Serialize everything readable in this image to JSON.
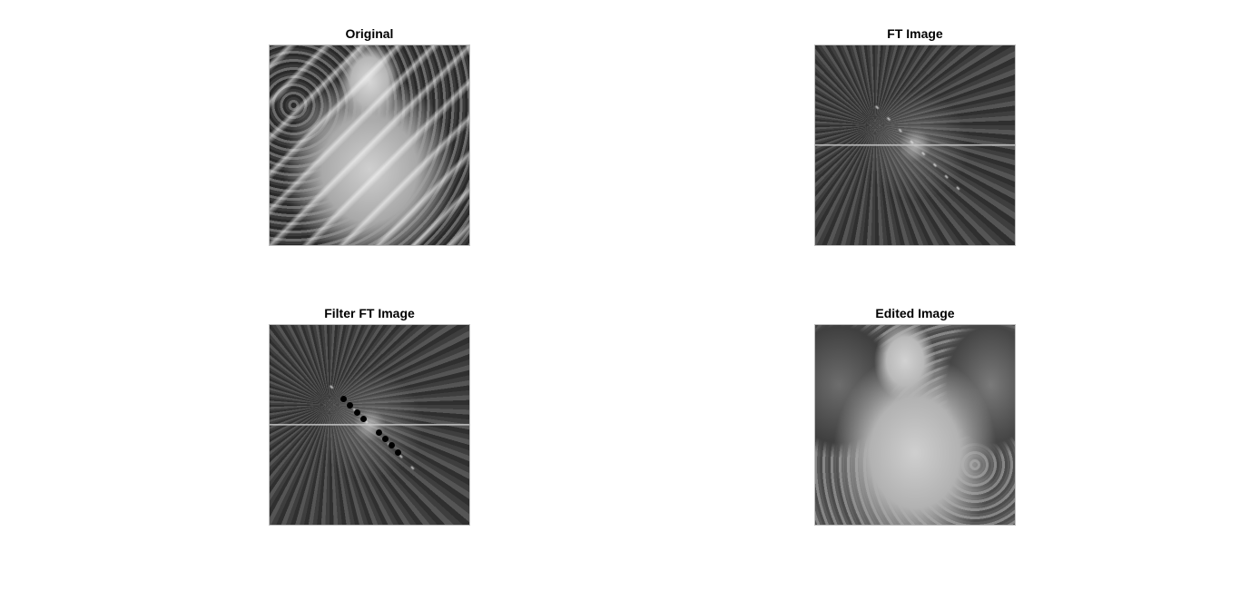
{
  "panels": [
    {
      "key": "original",
      "title": "Original"
    },
    {
      "key": "ft",
      "title": "FT Image"
    },
    {
      "key": "filter",
      "title": "Filter FT Image"
    },
    {
      "key": "edited",
      "title": "Edited Image"
    }
  ],
  "image_fill_color": "#444444",
  "filter_mask_color": "#000000"
}
